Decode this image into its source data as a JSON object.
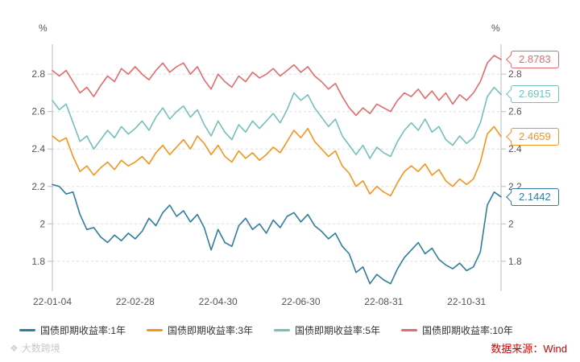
{
  "watermark": "大数跨境",
  "source_note": "数据来源：Wind",
  "chart_data": {
    "type": "line",
    "y_unit": "%",
    "title": "",
    "xlabel": "",
    "ylabel": "",
    "grid": "horizontal-dashed",
    "legend_position": "bottom",
    "n_points": 66,
    "ylim": [
      1.64,
      2.96
    ],
    "y_ticks": [
      1.8,
      2,
      2.2,
      2.4,
      2.6,
      2.8
    ],
    "y_tick_labels": [
      "1.8",
      "2",
      "2.2",
      "2.4",
      "2.6",
      "2.8"
    ],
    "x_tick_labels": [
      "22-01-04",
      "22-02-28",
      "22-04-30",
      "22-06-30",
      "22-08-31",
      "22-10-31"
    ],
    "x_tick_indices": [
      0,
      12,
      24,
      36,
      48,
      60
    ],
    "series": [
      {
        "name": "国债即期收益率:1年",
        "color": "#2f7e9d",
        "end_label": "2.1442",
        "values": [
          2.21,
          2.2,
          2.16,
          2.17,
          2.05,
          1.97,
          1.98,
          1.93,
          1.9,
          1.94,
          1.91,
          1.95,
          1.92,
          1.96,
          2.03,
          1.99,
          2.06,
          2.1,
          2.04,
          2.07,
          2.01,
          2.05,
          1.98,
          1.86,
          1.97,
          1.9,
          1.88,
          1.99,
          2.03,
          1.97,
          2.0,
          1.95,
          2.02,
          1.98,
          2.04,
          2.06,
          2.01,
          2.05,
          1.99,
          1.96,
          1.92,
          1.95,
          1.88,
          1.84,
          1.74,
          1.77,
          1.68,
          1.73,
          1.7,
          1.68,
          1.76,
          1.82,
          1.86,
          1.9,
          1.84,
          1.87,
          1.81,
          1.78,
          1.76,
          1.79,
          1.75,
          1.77,
          1.85,
          2.1,
          2.17,
          2.1442
        ]
      },
      {
        "name": "国债即期收益率:3年",
        "color": "#f5941f",
        "end_label": "2.4659",
        "values": [
          2.47,
          2.44,
          2.46,
          2.36,
          2.28,
          2.31,
          2.26,
          2.3,
          2.33,
          2.29,
          2.34,
          2.31,
          2.33,
          2.36,
          2.32,
          2.38,
          2.42,
          2.37,
          2.41,
          2.45,
          2.4,
          2.47,
          2.43,
          2.37,
          2.42,
          2.36,
          2.33,
          2.39,
          2.35,
          2.38,
          2.34,
          2.37,
          2.41,
          2.38,
          2.44,
          2.5,
          2.46,
          2.51,
          2.44,
          2.4,
          2.36,
          2.39,
          2.31,
          2.27,
          2.2,
          2.23,
          2.16,
          2.2,
          2.17,
          2.15,
          2.22,
          2.28,
          2.31,
          2.28,
          2.32,
          2.26,
          2.29,
          2.23,
          2.2,
          2.24,
          2.21,
          2.24,
          2.33,
          2.48,
          2.52,
          2.4659
        ]
      },
      {
        "name": "国债即期收益率:5年",
        "color": "#73c0bd",
        "end_label": "2.6915",
        "values": [
          2.66,
          2.61,
          2.64,
          2.54,
          2.44,
          2.47,
          2.4,
          2.45,
          2.5,
          2.46,
          2.52,
          2.48,
          2.51,
          2.55,
          2.5,
          2.57,
          2.62,
          2.56,
          2.6,
          2.63,
          2.57,
          2.61,
          2.53,
          2.47,
          2.55,
          2.49,
          2.45,
          2.53,
          2.49,
          2.55,
          2.51,
          2.55,
          2.59,
          2.54,
          2.61,
          2.7,
          2.66,
          2.69,
          2.62,
          2.57,
          2.52,
          2.56,
          2.47,
          2.42,
          2.37,
          2.42,
          2.35,
          2.41,
          2.38,
          2.36,
          2.44,
          2.5,
          2.54,
          2.5,
          2.56,
          2.49,
          2.52,
          2.45,
          2.42,
          2.47,
          2.43,
          2.46,
          2.54,
          2.68,
          2.73,
          2.6915
        ]
      },
      {
        "name": "国债即期收益率:10年",
        "color": "#e16b6d",
        "end_label": "2.8783",
        "values": [
          2.82,
          2.79,
          2.82,
          2.76,
          2.7,
          2.73,
          2.68,
          2.74,
          2.79,
          2.76,
          2.83,
          2.8,
          2.84,
          2.8,
          2.77,
          2.82,
          2.86,
          2.81,
          2.84,
          2.86,
          2.8,
          2.84,
          2.77,
          2.72,
          2.8,
          2.76,
          2.73,
          2.79,
          2.76,
          2.81,
          2.78,
          2.8,
          2.83,
          2.79,
          2.82,
          2.85,
          2.81,
          2.84,
          2.79,
          2.76,
          2.72,
          2.75,
          2.68,
          2.62,
          2.58,
          2.62,
          2.59,
          2.64,
          2.62,
          2.6,
          2.66,
          2.7,
          2.68,
          2.72,
          2.67,
          2.71,
          2.66,
          2.7,
          2.64,
          2.69,
          2.66,
          2.7,
          2.76,
          2.86,
          2.9,
          2.8783
        ]
      }
    ]
  }
}
